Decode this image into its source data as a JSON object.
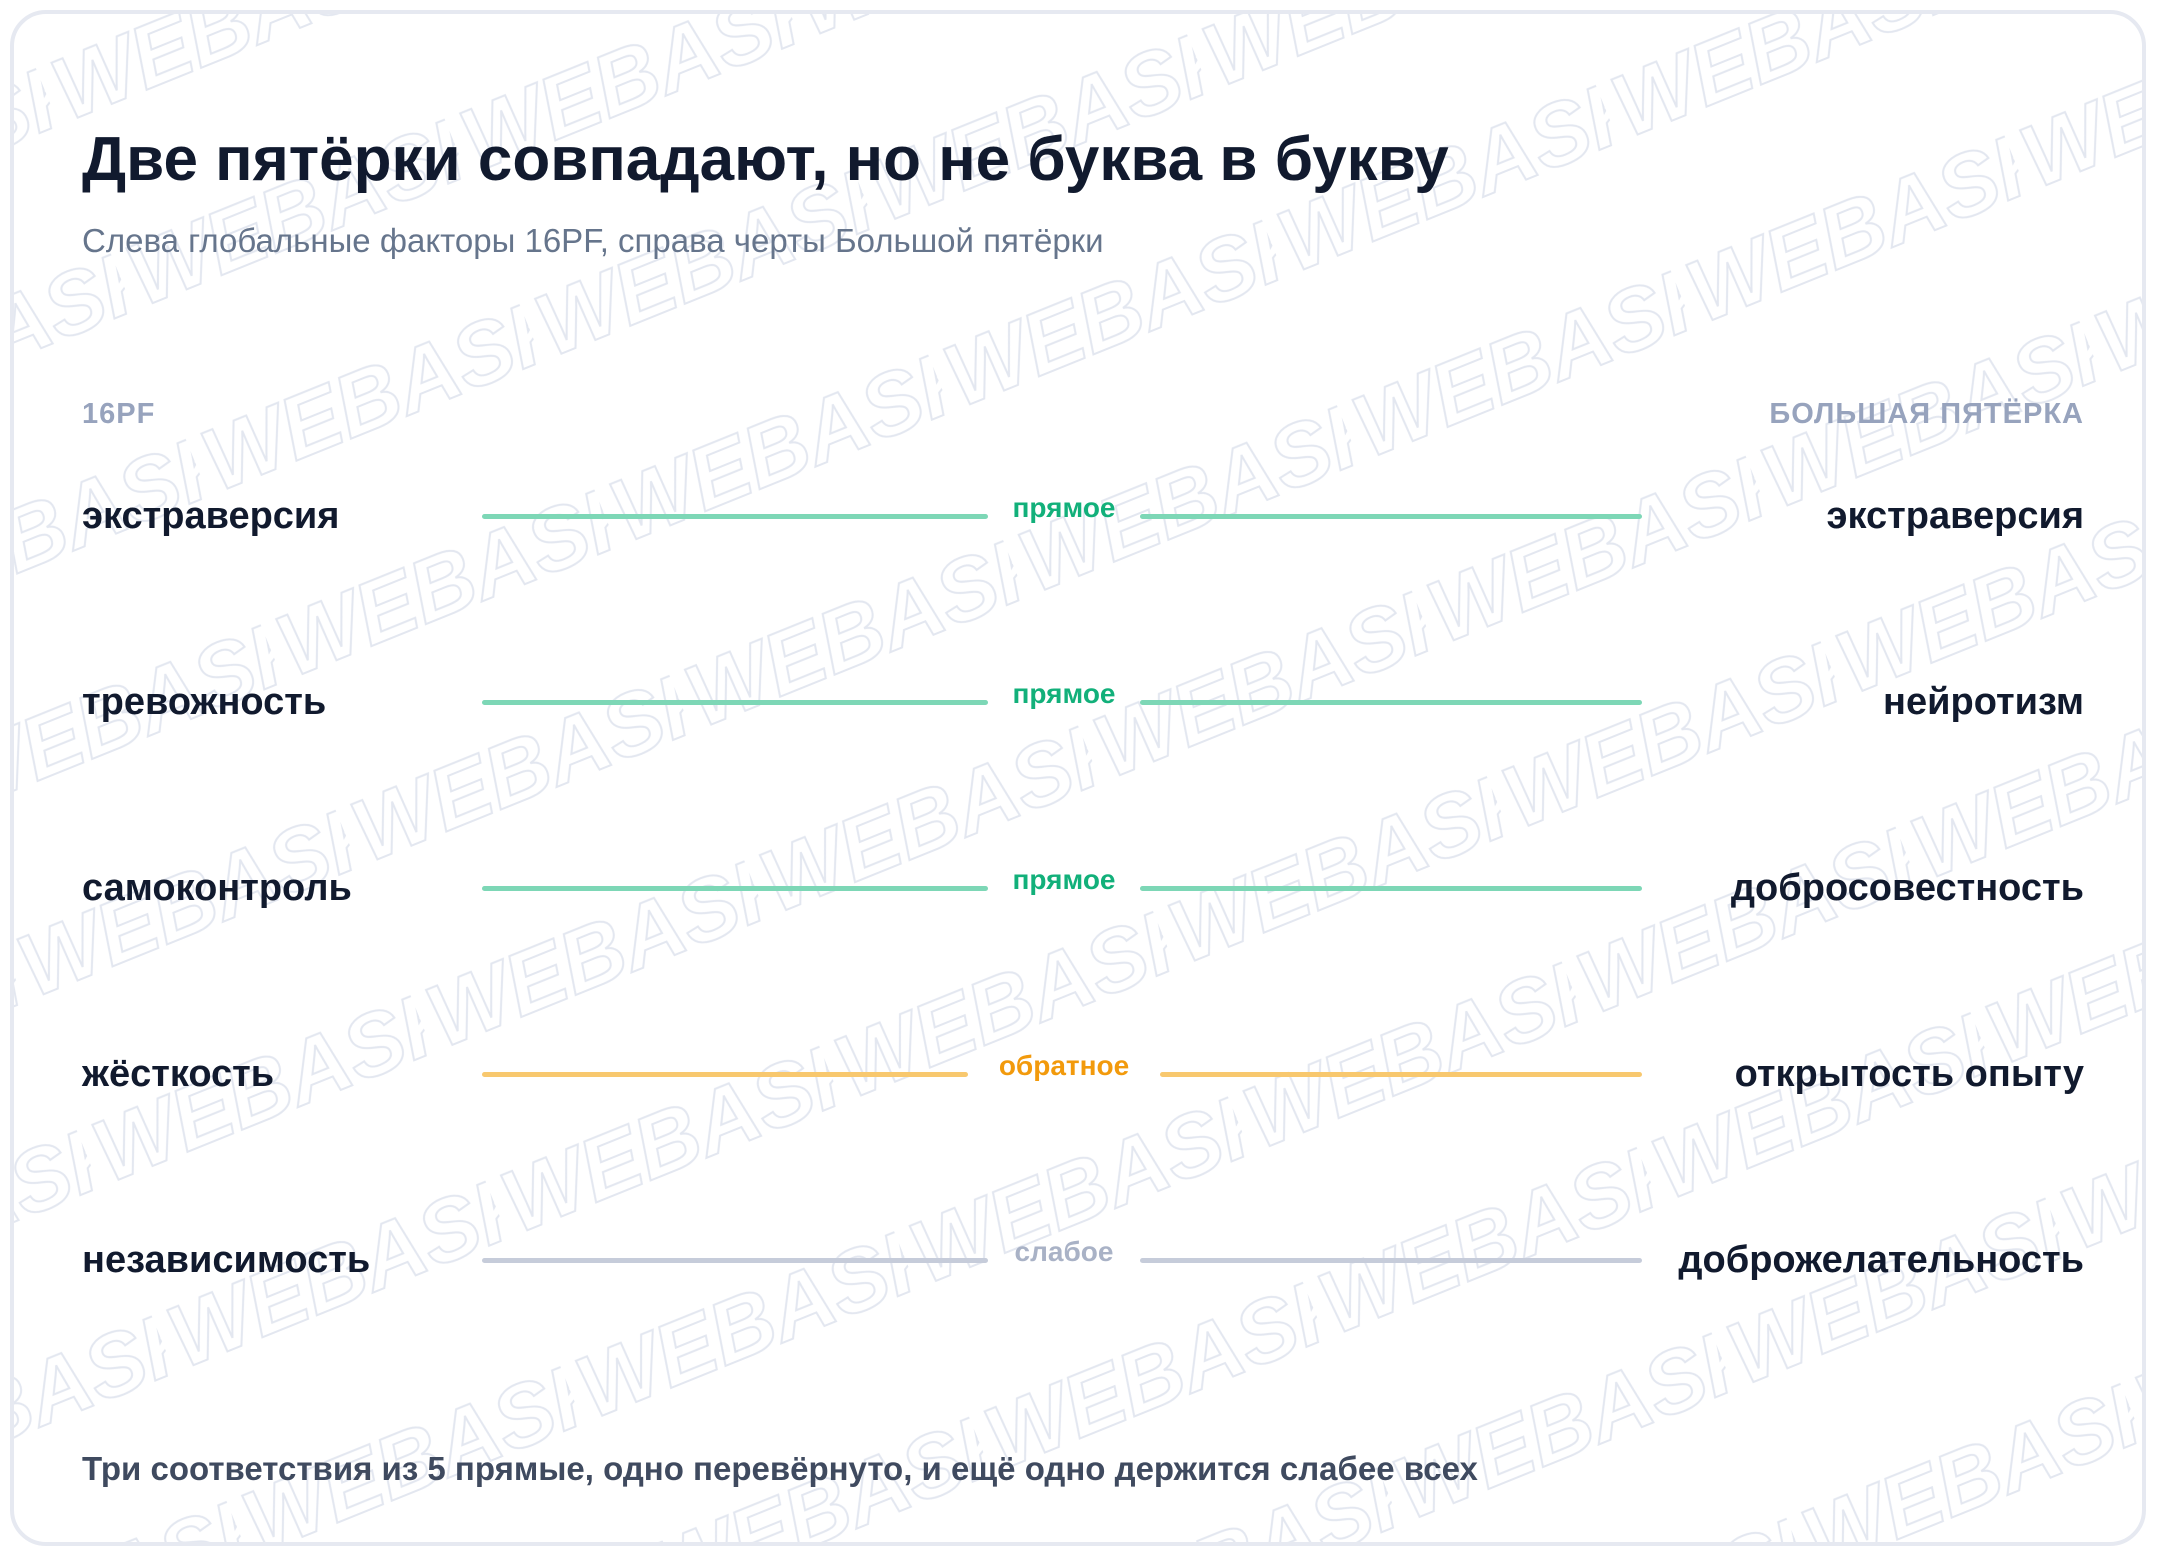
{
  "title": "Две пятёрки совпадают, но не буква в букву",
  "subtitle": "Слева глобальные факторы 16PF, справа черты Большой пятёрки",
  "columns": {
    "left": "16PF",
    "right": "БОЛЬШАЯ ПЯТЁРКА"
  },
  "watermark": "WEBASK",
  "colors": {
    "direct": "#12b07a",
    "direct_line": "#7dd7b6",
    "inverse": "#f29a0c",
    "inverse_line": "#f8c86e",
    "weak": "#a9b2c6",
    "weak_line": "#c6ccda"
  },
  "links": [
    {
      "left": "экстраверсия",
      "right": "экстраверсия",
      "relation": "прямое",
      "kind": "direct"
    },
    {
      "left": "тревожность",
      "right": "нейротизм",
      "relation": "прямое",
      "kind": "direct"
    },
    {
      "left": "самоконтроль",
      "right": "добросовестность",
      "relation": "прямое",
      "kind": "direct"
    },
    {
      "left": "жёсткость",
      "right": "открытость опыту",
      "relation": "обратное",
      "kind": "inverse"
    },
    {
      "left": "независимость",
      "right": "доброжелательность",
      "relation": "слабое",
      "kind": "weak"
    }
  ],
  "footer": "Три соответствия из 5 прямые, одно перевёрнуто, и ещё одно держится слабее всех"
}
